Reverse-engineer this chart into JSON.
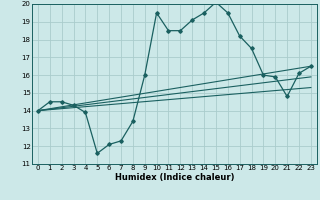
{
  "background_color": "#cce8e8",
  "grid_color": "#aacccc",
  "line_color": "#1a6060",
  "xlabel": "Humidex (Indice chaleur)",
  "xlim": [
    -0.5,
    23.5
  ],
  "ylim": [
    11,
    20
  ],
  "yticks": [
    11,
    12,
    13,
    14,
    15,
    16,
    17,
    18,
    19,
    20
  ],
  "xticks": [
    0,
    1,
    2,
    3,
    4,
    5,
    6,
    7,
    8,
    9,
    10,
    11,
    12,
    13,
    14,
    15,
    16,
    17,
    18,
    19,
    20,
    21,
    22,
    23
  ],
  "main_line_x": [
    0,
    1,
    2,
    3,
    4,
    5,
    6,
    7,
    8,
    9,
    10,
    11,
    12,
    13,
    14,
    15,
    16,
    17,
    18,
    19,
    20,
    21,
    22,
    23
  ],
  "main_line_y": [
    14.0,
    14.5,
    14.5,
    14.3,
    13.9,
    11.6,
    12.1,
    12.3,
    13.4,
    16.0,
    19.5,
    18.5,
    18.5,
    19.1,
    19.5,
    20.1,
    19.5,
    18.2,
    17.5,
    16.0,
    15.9,
    14.8,
    16.1,
    16.5
  ],
  "trend_line1_x": [
    0,
    23
  ],
  "trend_line1_y": [
    14.0,
    16.5
  ],
  "trend_line2_x": [
    0,
    23
  ],
  "trend_line2_y": [
    14.0,
    15.9
  ],
  "trend_line3_x": [
    0,
    23
  ],
  "trend_line3_y": [
    14.0,
    15.3
  ]
}
